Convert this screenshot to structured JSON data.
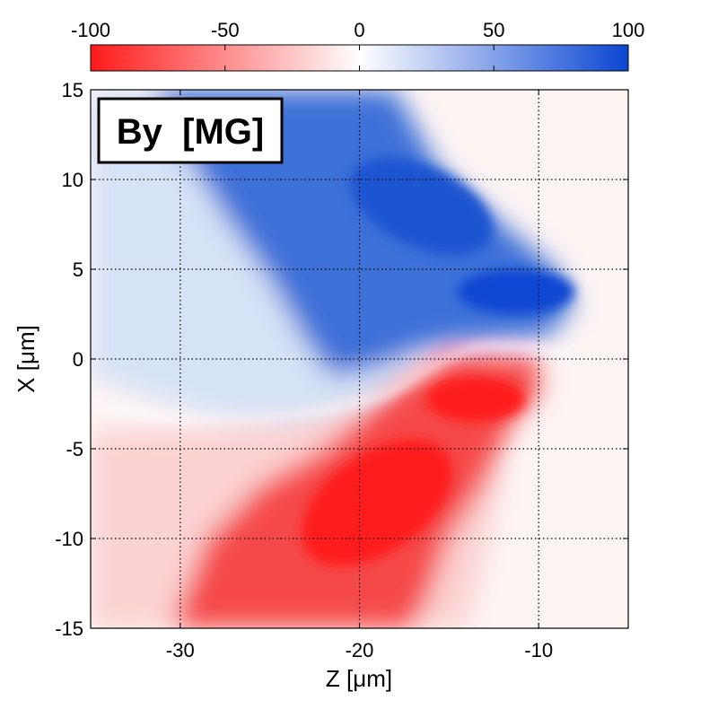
{
  "chart_data": {
    "type": "heatmap",
    "title": "By  [MG]",
    "xlabel": "Z  [μm]",
    "ylabel": "X  [μm]",
    "xlim": [
      -35,
      -5
    ],
    "ylim": [
      -15,
      15
    ],
    "x_ticks": [
      -30,
      -20,
      -10
    ],
    "y_ticks": [
      15,
      10,
      5,
      0,
      -5,
      -10,
      -15
    ],
    "grid": true,
    "colorbar": {
      "position": "top",
      "range": [
        -100,
        100
      ],
      "ticks": [
        -100,
        -50,
        0,
        50,
        100
      ],
      "color_negative": "#ff1a1a",
      "color_zero": "#ffffff",
      "color_positive": "#0a46d2"
    },
    "field_description": [
      {
        "region": "upper lobe, centered near Z=-18..-13, X=3..12",
        "sign": "positive",
        "peak_value": 90
      },
      {
        "region": "lower lobe, centered near Z=-20..-14, X=-2..-9",
        "sign": "negative",
        "peak_value": -95
      },
      {
        "region": "broad faint halo for Z<-24, X=-3..15",
        "sign": "positive",
        "typical_value": 15
      },
      {
        "region": "broad faint halo for Z<-24, X<-5",
        "sign": "negative",
        "typical_value": -20
      },
      {
        "region": "Z>-8",
        "sign": "near zero",
        "typical_value": 0
      }
    ]
  }
}
